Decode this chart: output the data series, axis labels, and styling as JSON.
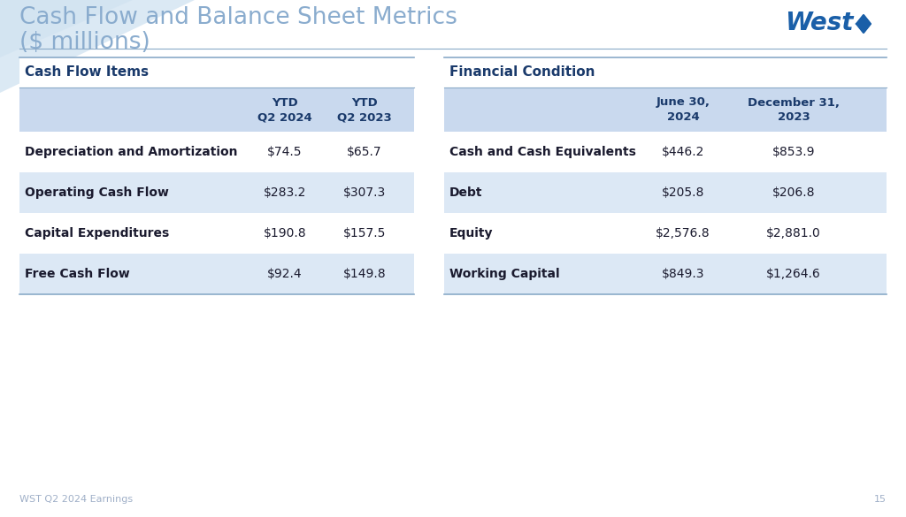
{
  "title_line1": "Cash Flow and Balance Sheet Metrics",
  "title_line2": "($ millions)",
  "title_color": "#8aacce",
  "bg_color": "#ffffff",
  "corner_color": "#cde0f0",
  "header_bg": "#c9d9ee",
  "row_alt_bg": "#dce8f5",
  "row_white_bg": "#ffffff",
  "section_header_color": "#1a3a6b",
  "text_color": "#1a1a2e",
  "border_color": "#8aaac8",
  "left_table": {
    "title": "Cash Flow Items",
    "col2_header_line1": "YTD",
    "col2_header_line2": "Q2 2024",
    "col3_header_line1": "YTD",
    "col3_header_line2": "Q2 2023",
    "rows": [
      [
        "Depreciation and Amortization",
        "$74.5",
        "$65.7"
      ],
      [
        "Operating Cash Flow",
        "$283.2",
        "$307.3"
      ],
      [
        "Capital Expenditures",
        "$190.8",
        "$157.5"
      ],
      [
        "Free Cash Flow",
        "$92.4",
        "$149.8"
      ]
    ]
  },
  "right_table": {
    "title": "Financial Condition",
    "col2_header_line1": "June 30,",
    "col2_header_line2": "2024",
    "col3_header_line1": "December 31,",
    "col3_header_line2": "2023",
    "rows": [
      [
        "Cash and Cash Equivalents",
        "$446.2",
        "$853.9"
      ],
      [
        "Debt",
        "$205.8",
        "$206.8"
      ],
      [
        "Equity",
        "$2,576.8",
        "$2,881.0"
      ],
      [
        "Working Capital",
        "$849.3",
        "$1,264.6"
      ]
    ]
  },
  "footer_text": "WST Q2 2024 Earnings",
  "page_number": "15",
  "logo_color": "#1a5fa8"
}
